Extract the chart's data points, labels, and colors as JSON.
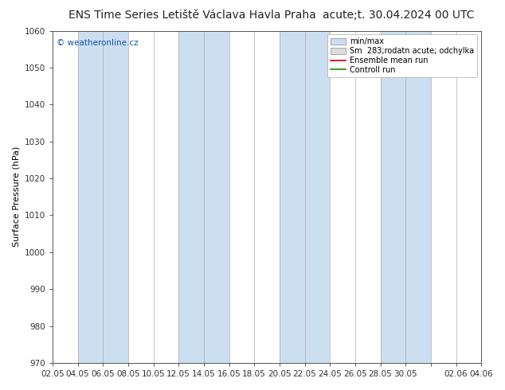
{
  "title_left": "ENS Time Series Letiště Václava Havla Praha",
  "title_right": "acute;t. 30.04.2024 00 UTC",
  "ylabel": "Surface Pressure (hPa)",
  "watermark": "© weatheronline.cz",
  "ylim": [
    970,
    1060
  ],
  "yticks": [
    970,
    980,
    990,
    1000,
    1010,
    1020,
    1030,
    1040,
    1050,
    1060
  ],
  "xtick_labels": [
    "02.05",
    "04.05",
    "06.05",
    "08.05",
    "10.05",
    "12.05",
    "14.05",
    "16.05",
    "18.05",
    "20.05",
    "22.05",
    "24.05",
    "26.05",
    "28.05",
    "30.05",
    "",
    "02.06",
    "04.06"
  ],
  "band_color_light": "#ccdff0",
  "band_color_white": "#ffffff",
  "bg_color": "#ffffff",
  "title_fontsize": 10,
  "label_fontsize": 8,
  "tick_fontsize": 7.5
}
